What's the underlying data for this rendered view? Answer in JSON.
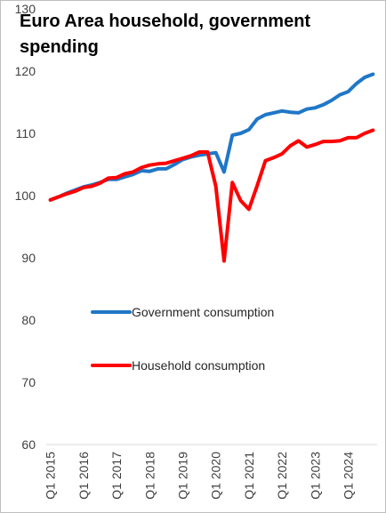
{
  "chart_data": {
    "type": "line",
    "title": "Euro Area household, government spending",
    "xlabel": "",
    "ylabel": "",
    "ylim": [
      60,
      130
    ],
    "yticks": [
      60,
      70,
      80,
      90,
      100,
      110,
      120,
      130
    ],
    "xticks": [
      "Q1 2015",
      "Q1 2016",
      "Q1 2017",
      "Q1 2018",
      "Q1 2019",
      "Q1 2020",
      "Q1 2021",
      "Q1 2022",
      "Q1 2023",
      "Q1 2024"
    ],
    "x": [
      "Q1 2015",
      "Q2 2015",
      "Q3 2015",
      "Q4 2015",
      "Q1 2016",
      "Q2 2016",
      "Q3 2016",
      "Q4 2016",
      "Q1 2017",
      "Q2 2017",
      "Q3 2017",
      "Q4 2017",
      "Q1 2018",
      "Q2 2018",
      "Q3 2018",
      "Q4 2018",
      "Q1 2019",
      "Q2 2019",
      "Q3 2019",
      "Q4 2019",
      "Q1 2020",
      "Q2 2020",
      "Q3 2020",
      "Q4 2020",
      "Q1 2021",
      "Q2 2021",
      "Q3 2021",
      "Q4 2021",
      "Q1 2022",
      "Q2 2022",
      "Q3 2022",
      "Q4 2022",
      "Q1 2023",
      "Q2 2023",
      "Q3 2023",
      "Q4 2023",
      "Q1 2024",
      "Q2 2024",
      "Q3 2024",
      "Q4 2024"
    ],
    "grid": false,
    "legend_position": "center-left",
    "series": [
      {
        "name": "Government consumption",
        "color": "#1f77c8",
        "values": [
          99.3,
          99.8,
          100.4,
          100.9,
          101.4,
          101.7,
          102.1,
          102.6,
          102.6,
          103.0,
          103.4,
          104.0,
          103.9,
          104.3,
          104.3,
          105.0,
          105.8,
          106.2,
          106.5,
          106.7,
          106.9,
          103.8,
          109.7,
          110.0,
          110.6,
          112.3,
          113.0,
          113.3,
          113.6,
          113.4,
          113.3,
          113.9,
          114.1,
          114.6,
          115.3,
          116.2,
          116.7,
          118.0,
          119.0,
          119.5
        ]
      },
      {
        "name": "Household consumption",
        "color": "#ff0000",
        "values": [
          99.3,
          99.8,
          100.3,
          100.7,
          101.3,
          101.5,
          102.0,
          102.8,
          102.9,
          103.5,
          103.8,
          104.5,
          104.9,
          105.1,
          105.2,
          105.6,
          106.0,
          106.4,
          107.0,
          107.0,
          101.5,
          89.5,
          102.1,
          99.2,
          97.8,
          101.6,
          105.6,
          106.1,
          106.7,
          108.0,
          108.8,
          107.8,
          108.2,
          108.7,
          108.7,
          108.8,
          109.3,
          109.3,
          110.0,
          110.5
        ]
      }
    ]
  }
}
